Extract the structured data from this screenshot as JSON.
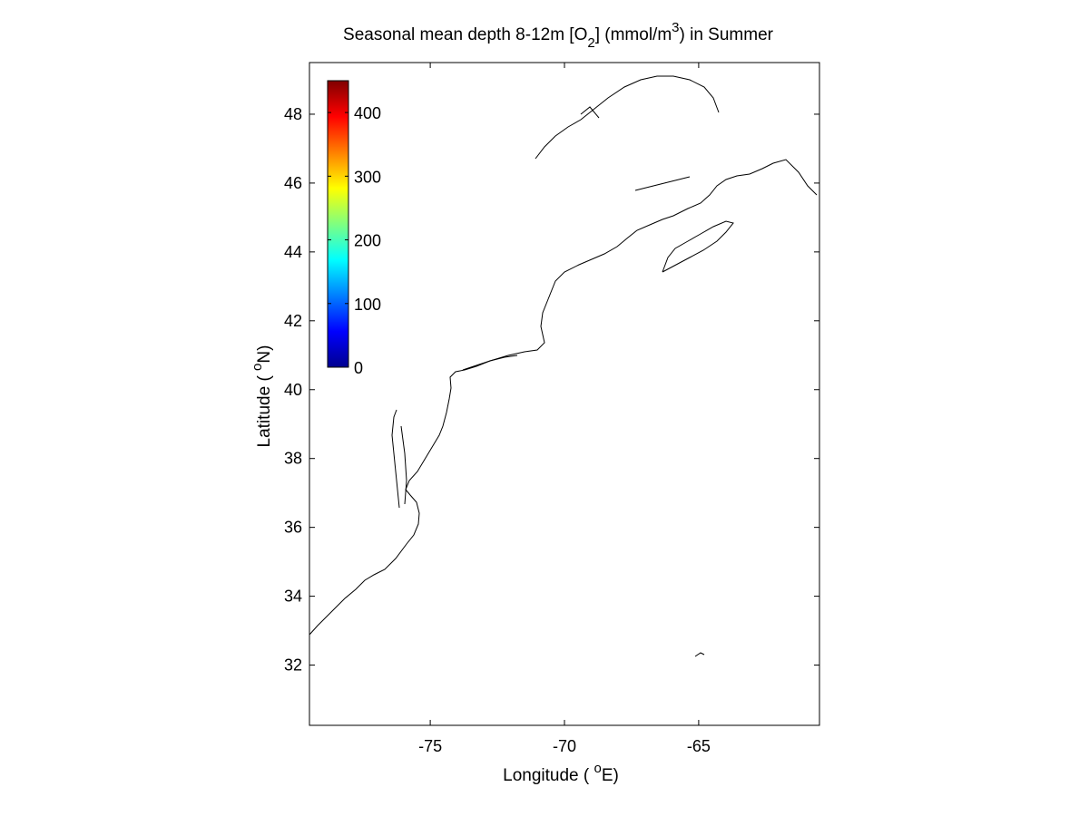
{
  "title": {
    "prefix": "Seasonal mean depth 8-12m [O",
    "sub": "2",
    "middle": "] (mmol/m",
    "sup": "3",
    "suffix": ") in  Summer"
  },
  "xaxis": {
    "label_pre": "Longitude ( ",
    "label_sup": "o",
    "label_post": "E)",
    "ticks": [
      "-75",
      "-70",
      "-65"
    ],
    "tick_values": [
      -75,
      -70,
      -65
    ],
    "range": [
      -79.5,
      -60.5
    ]
  },
  "yaxis": {
    "label_pre": "Latitude ( ",
    "label_sup": "o",
    "label_post": "N)",
    "ticks": [
      "32",
      "34",
      "36",
      "38",
      "40",
      "42",
      "44",
      "46",
      "48"
    ],
    "tick_values": [
      32,
      34,
      36,
      38,
      40,
      42,
      44,
      46,
      48
    ],
    "range": [
      30.25,
      49.5
    ]
  },
  "colorbar": {
    "ticks": [
      "0",
      "100",
      "200",
      "300",
      "400"
    ],
    "tick_values": [
      0,
      100,
      200,
      300,
      400
    ],
    "range": [
      0,
      450
    ],
    "colormap": "jet"
  },
  "chart_data": {
    "type": "heatmap",
    "variable": "O2",
    "units": "mmol/m3",
    "season": "Summer",
    "cell_size_deg": 0.5,
    "lon_start": -79.5,
    "lat_start": 30.25,
    "rows_from_north": [
      ".....................................................",
      "...................................................."
    ]
  }
}
